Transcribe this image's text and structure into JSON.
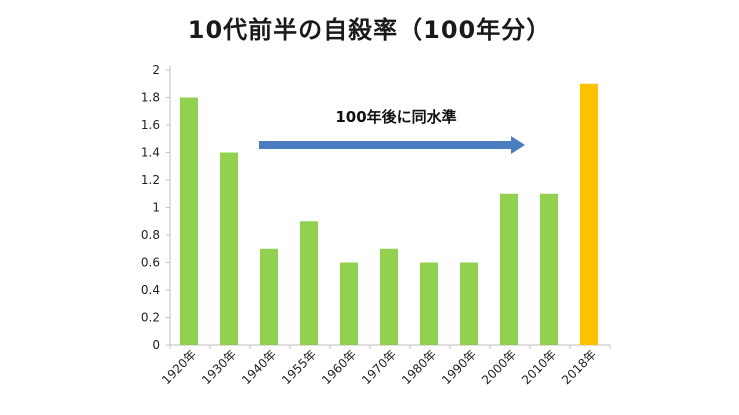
{
  "chart_data": {
    "type": "bar",
    "title": "10代前半の自殺率（100年分）",
    "categories": [
      "1920年",
      "1930年",
      "1940年",
      "1955年",
      "1960年",
      "1970年",
      "1980年",
      "1990年",
      "2000年",
      "2010年",
      "2018年"
    ],
    "values": [
      1.8,
      1.4,
      0.7,
      0.9,
      0.6,
      0.7,
      0.6,
      0.6,
      1.1,
      1.1,
      1.9
    ],
    "ylim": [
      0,
      2
    ],
    "yticks": [
      "0",
      "0.2",
      "0.4",
      "0.6",
      "0.8",
      "1",
      "1.2",
      "1.4",
      "1.6",
      "1.8",
      "2"
    ],
    "xlabel": "",
    "ylabel": "",
    "grid": false,
    "colors": {
      "default_bar": "#92d050",
      "highlight_bar": "#ffc000",
      "arrow": "#4a7cc0",
      "axis": "#bfbfbf"
    },
    "highlight_index": 10,
    "annotation": {
      "text": "100年後に同水準",
      "from_index": 2,
      "to_index": 8
    }
  }
}
